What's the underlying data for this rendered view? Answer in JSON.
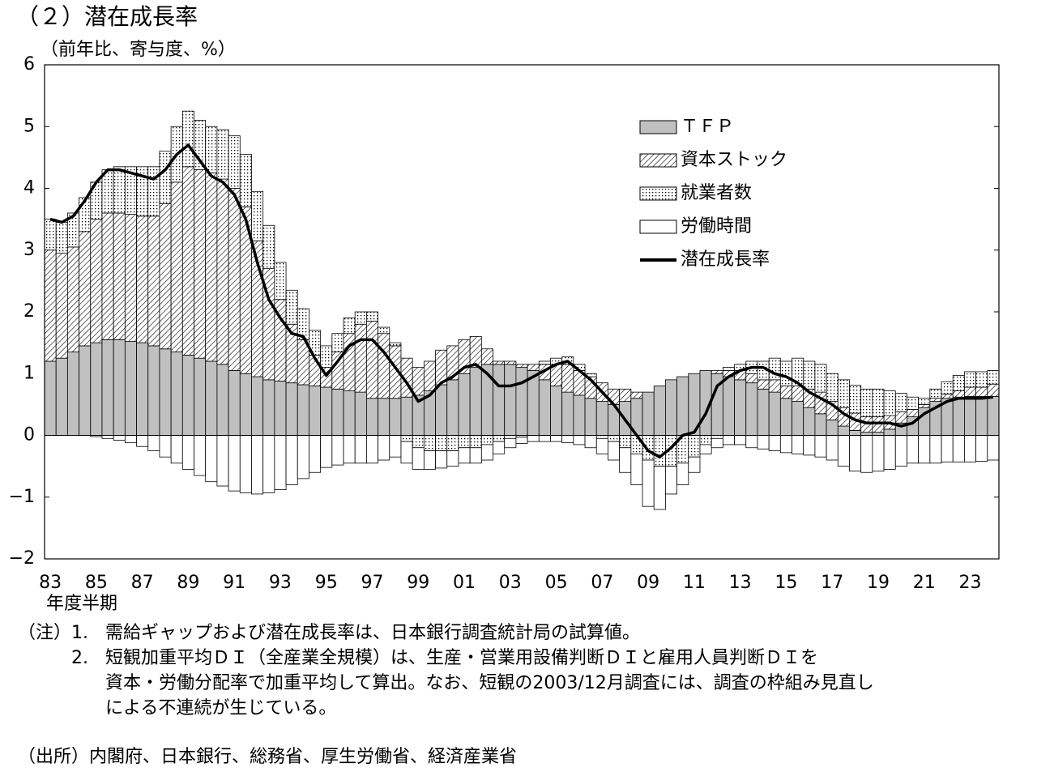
{
  "chart_data": {
    "type": "bar",
    "title": "（２）潜在成長率",
    "y_label": "（前年比、寄与度、%）",
    "x_label": "年度半期",
    "ylim": [
      -2,
      6
    ],
    "yticks": [
      {
        "value": -2,
        "label": "−2"
      },
      {
        "value": -1,
        "label": "−1"
      },
      0,
      1,
      2,
      3,
      4,
      5,
      6
    ],
    "categories": [
      "83",
      null,
      null,
      null,
      "85",
      null,
      null,
      null,
      "87",
      null,
      null,
      null,
      "89",
      null,
      null,
      null,
      "91",
      null,
      null,
      null,
      "93",
      null,
      null,
      null,
      "95",
      null,
      null,
      null,
      "97",
      null,
      null,
      null,
      "99",
      null,
      null,
      null,
      "01",
      null,
      null,
      null,
      "03",
      null,
      null,
      null,
      "05",
      null,
      null,
      null,
      "07",
      null,
      null,
      null,
      "09",
      null,
      null,
      null,
      "11",
      null,
      null,
      null,
      "13",
      null,
      null,
      null,
      "15",
      null,
      null,
      null,
      "17",
      null,
      null,
      null,
      "19",
      null,
      null,
      null,
      "21",
      null,
      null,
      null,
      "23",
      null,
      null
    ],
    "series": [
      {
        "name": "ＴＦＰ",
        "type": "bar",
        "color": "#c0c0c0",
        "values": [
          1.2,
          1.25,
          1.35,
          1.45,
          1.5,
          1.55,
          1.55,
          1.52,
          1.5,
          1.45,
          1.4,
          1.35,
          1.3,
          1.25,
          1.2,
          1.15,
          1.05,
          1.0,
          0.95,
          0.9,
          0.88,
          0.85,
          0.82,
          0.8,
          0.78,
          0.75,
          0.72,
          0.7,
          0.6,
          0.6,
          0.6,
          0.62,
          0.65,
          0.72,
          0.82,
          0.9,
          1.0,
          1.1,
          1.15,
          1.15,
          1.15,
          1.1,
          1.05,
          0.9,
          0.8,
          0.7,
          0.65,
          0.6,
          0.55,
          0.5,
          0.55,
          0.6,
          0.7,
          0.8,
          0.9,
          0.95,
          1.0,
          1.05,
          1.0,
          0.95,
          0.9,
          0.85,
          0.75,
          0.7,
          0.6,
          0.55,
          0.45,
          0.35,
          0.25,
          0.15,
          0.08,
          0.05,
          0.05,
          0.1,
          0.2,
          0.3,
          0.45,
          0.55,
          0.6,
          0.62,
          0.63,
          0.63,
          0.63
        ]
      },
      {
        "name": "資本ストック",
        "type": "bar",
        "color": "#000000",
        "fill": "hatch",
        "values": [
          1.8,
          1.7,
          1.7,
          1.85,
          2.0,
          2.05,
          2.05,
          2.06,
          2.05,
          2.1,
          2.35,
          2.75,
          3.05,
          3.05,
          3.05,
          3.0,
          2.95,
          2.7,
          2.2,
          1.8,
          1.32,
          0.95,
          0.73,
          0.5,
          0.32,
          0.6,
          0.93,
          1.1,
          1.25,
          1.05,
          0.85,
          0.63,
          0.45,
          0.48,
          0.56,
          0.55,
          0.55,
          0.5,
          0.25,
          0.05,
          0.05,
          0.05,
          0.1,
          0.25,
          0.35,
          0.45,
          0.4,
          0.35,
          0.3,
          0.25,
          0.2,
          0.1,
          0,
          0,
          0,
          0,
          0,
          0,
          0.05,
          0.1,
          0.15,
          0.15,
          0.15,
          0.2,
          0.2,
          0.25,
          0.3,
          0.35,
          0.3,
          0.3,
          0.28,
          0.25,
          0.25,
          0.22,
          0.18,
          0.12,
          0.05,
          0.05,
          0.07,
          0.1,
          0.15,
          0.15,
          0.2
        ]
      },
      {
        "name": "就業者数",
        "type": "bar",
        "color": "#000000",
        "fill": "dots",
        "values": [
          0.5,
          0.5,
          0.55,
          0.55,
          0.6,
          0.7,
          0.75,
          0.77,
          0.8,
          0.8,
          0.85,
          0.9,
          0.9,
          0.8,
          0.75,
          0.8,
          0.85,
          0.85,
          0.8,
          0.7,
          0.6,
          0.55,
          0.5,
          0.4,
          0.35,
          0.3,
          0.25,
          0.2,
          0.15,
          0.1,
          0.05,
          -0.1,
          -0.2,
          -0.25,
          -0.25,
          -0.25,
          -0.2,
          -0.2,
          -0.15,
          -0.1,
          -0.05,
          -0.03,
          0,
          0.05,
          0.1,
          0.12,
          0.1,
          0.05,
          -0.05,
          -0.1,
          -0.2,
          -0.3,
          -0.4,
          -0.5,
          -0.5,
          -0.45,
          -0.35,
          -0.15,
          -0.05,
          0.05,
          0.1,
          0.2,
          0.3,
          0.35,
          0.4,
          0.45,
          0.45,
          0.45,
          0.45,
          0.45,
          0.45,
          0.45,
          0.45,
          0.4,
          0.3,
          0.2,
          0.1,
          0.15,
          0.2,
          0.25,
          0.25,
          0.25,
          0.22
        ]
      },
      {
        "name": "労働時間",
        "type": "bar",
        "color": "#ffffff",
        "values": [
          0,
          0,
          0,
          0,
          -0.02,
          -0.05,
          -0.08,
          -0.12,
          -0.18,
          -0.25,
          -0.35,
          -0.45,
          -0.55,
          -0.65,
          -0.75,
          -0.82,
          -0.9,
          -0.93,
          -0.95,
          -0.93,
          -0.88,
          -0.8,
          -0.7,
          -0.6,
          -0.52,
          -0.48,
          -0.45,
          -0.45,
          -0.45,
          -0.4,
          -0.35,
          -0.35,
          -0.35,
          -0.3,
          -0.28,
          -0.25,
          -0.25,
          -0.25,
          -0.25,
          -0.2,
          -0.15,
          -0.1,
          -0.1,
          -0.1,
          -0.1,
          -0.12,
          -0.15,
          -0.2,
          -0.25,
          -0.3,
          -0.4,
          -0.5,
          -0.75,
          -0.7,
          -0.45,
          -0.35,
          -0.25,
          -0.15,
          -0.15,
          -0.15,
          -0.15,
          -0.2,
          -0.22,
          -0.25,
          -0.28,
          -0.3,
          -0.32,
          -0.35,
          -0.4,
          -0.5,
          -0.58,
          -0.6,
          -0.58,
          -0.55,
          -0.5,
          -0.45,
          -0.45,
          -0.45,
          -0.43,
          -0.43,
          -0.43,
          -0.42,
          -0.4
        ]
      },
      {
        "name": "潜在成長率",
        "type": "line",
        "color": "#000000",
        "values": [
          3.5,
          3.45,
          3.55,
          3.8,
          4.1,
          4.3,
          4.3,
          4.25,
          4.2,
          4.15,
          4.3,
          4.55,
          4.7,
          4.45,
          4.2,
          4.1,
          3.9,
          3.5,
          2.8,
          2.2,
          1.9,
          1.65,
          1.6,
          1.25,
          0.97,
          1.2,
          1.45,
          1.55,
          1.55,
          1.35,
          1.1,
          0.85,
          0.55,
          0.65,
          0.85,
          0.95,
          1.1,
          1.15,
          1.0,
          0.8,
          0.8,
          0.85,
          0.95,
          1.05,
          1.15,
          1.2,
          1.05,
          0.9,
          0.7,
          0.5,
          0.25,
          0.0,
          -0.25,
          -0.35,
          -0.2,
          0.0,
          0.05,
          0.35,
          0.8,
          0.95,
          1.05,
          1.1,
          1.1,
          1.0,
          0.95,
          0.85,
          0.7,
          0.6,
          0.5,
          0.35,
          0.25,
          0.2,
          0.2,
          0.2,
          0.15,
          0.2,
          0.35,
          0.45,
          0.55,
          0.6,
          0.6,
          0.6,
          0.62
        ]
      }
    ],
    "notes_label": "（注）",
    "notes": [
      {
        "number": "1.",
        "lines": [
          "需給ギャップおよび潜在成長率は、日本銀行調査統計局の試算値。"
        ]
      },
      {
        "number": "2.",
        "lines": [
          "短観加重平均ＤＩ（全産業全規模）は、生産・営業用設備判断ＤＩと雇用人員判断ＤＩを",
          "資本・労働分配率で加重平均して算出。なお、短観の2003/12月調査には、調査の枠組み見直し",
          "による不連続が生じている。"
        ]
      }
    ],
    "source": "（出所）内閣府、日本銀行、総務省、厚生労働省、経済産業省"
  }
}
